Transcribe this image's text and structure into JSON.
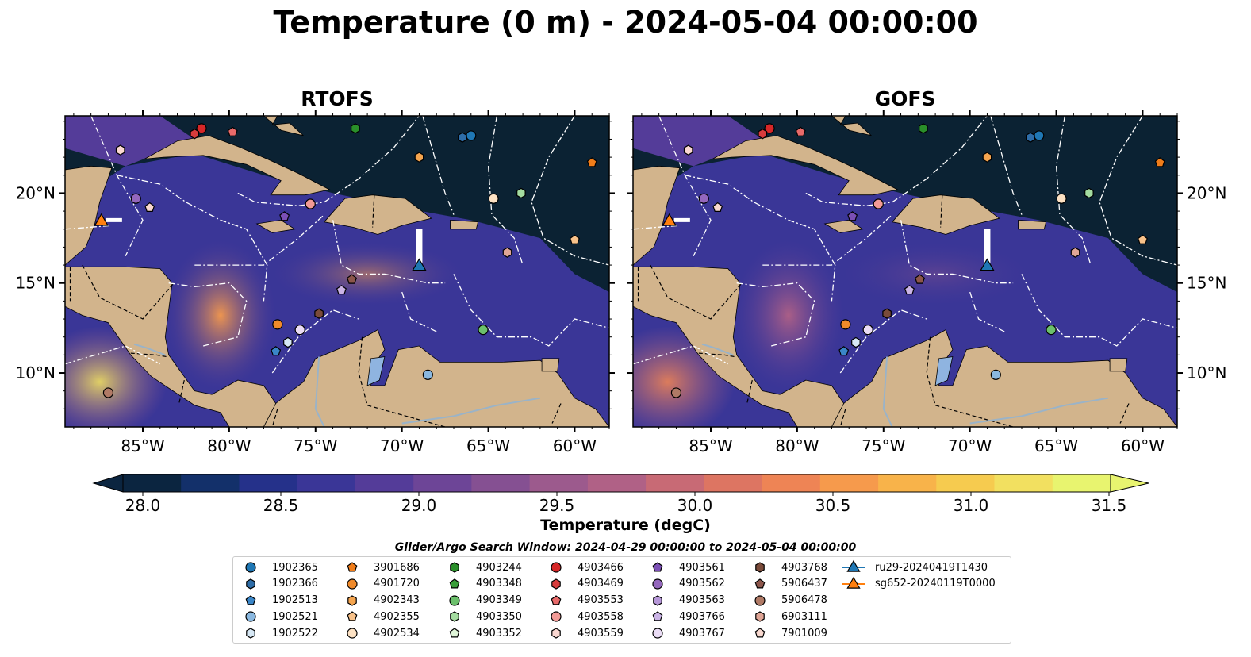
{
  "title": "Temperature (0 m) - 2024-05-04 00:00:00",
  "panels": [
    {
      "title": "RTOFS",
      "tint": "warm"
    },
    {
      "title": "GOFS",
      "tint": "cool"
    }
  ],
  "axes": {
    "lon_ticks": [
      "85°W",
      "80°W",
      "75°W",
      "70°W",
      "65°W",
      "60°W"
    ],
    "lat_ticks": [
      "20°N",
      "15°N",
      "10°N"
    ]
  },
  "colorbar": {
    "label": "Temperature (degC)",
    "ticks": [
      "28.0",
      "28.5",
      "29.0",
      "29.5",
      "30.0",
      "30.5",
      "31.0",
      "31.5"
    ],
    "colors": [
      "#0b2540",
      "#13306a",
      "#25318a",
      "#3a3697",
      "#543c99",
      "#6d4597",
      "#855092",
      "#9c5a8d",
      "#b06186",
      "#c86a75",
      "#dd7562",
      "#ee8455",
      "#f69a4c",
      "#f8b34a",
      "#f6cb4f",
      "#f2e060",
      "#e8f46f"
    ]
  },
  "land_color": "#d2b48c",
  "ocean_dark": "#0b2233",
  "legend": {
    "title": "Glider/Argo Search Window: 2024-04-29 00:00:00 to 2024-05-04 00:00:00",
    "items": [
      {
        "label": "1902365",
        "marker": "circle",
        "color": "#1f77b4"
      },
      {
        "label": "1902366",
        "marker": "hexagon",
        "color": "#2e6da8"
      },
      {
        "label": "1902513",
        "marker": "pentagon",
        "color": "#3a86c8"
      },
      {
        "label": "1902521",
        "marker": "circle",
        "color": "#8ab8e0"
      },
      {
        "label": "1902522",
        "marker": "hexagon",
        "color": "#d7e8f5"
      },
      {
        "label": "3901686",
        "marker": "pentagon",
        "color": "#f07d1a"
      },
      {
        "label": "4901720",
        "marker": "circle",
        "color": "#f08a2a"
      },
      {
        "label": "4902343",
        "marker": "hexagon",
        "color": "#f5a54f"
      },
      {
        "label": "4902355",
        "marker": "pentagon",
        "color": "#f8c28a"
      },
      {
        "label": "4902534",
        "marker": "circle",
        "color": "#fde2c4"
      },
      {
        "label": "4903244",
        "marker": "hexagon",
        "color": "#2a8f2a"
      },
      {
        "label": "4903348",
        "marker": "pentagon",
        "color": "#3a9e3a"
      },
      {
        "label": "4903349",
        "marker": "circle",
        "color": "#6cc06c"
      },
      {
        "label": "4903350",
        "marker": "hexagon",
        "color": "#a4dca0"
      },
      {
        "label": "4903352",
        "marker": "pentagon",
        "color": "#dff5d8"
      },
      {
        "label": "4903466",
        "marker": "circle",
        "color": "#d62728"
      },
      {
        "label": "4903469",
        "marker": "hexagon",
        "color": "#d83c3c"
      },
      {
        "label": "4903553",
        "marker": "pentagon",
        "color": "#e86a6a"
      },
      {
        "label": "4903558",
        "marker": "circle",
        "color": "#f29a96"
      },
      {
        "label": "4903559",
        "marker": "hexagon",
        "color": "#fbd8d2"
      },
      {
        "label": "4903561",
        "marker": "pentagon",
        "color": "#7b4fb5"
      },
      {
        "label": "4903562",
        "marker": "circle",
        "color": "#9467bd"
      },
      {
        "label": "4903563",
        "marker": "hexagon",
        "color": "#b697d8"
      },
      {
        "label": "4903766",
        "marker": "pentagon",
        "color": "#cbb4e6"
      },
      {
        "label": "4903767",
        "marker": "circle",
        "color": "#eadcf5"
      },
      {
        "label": "4903768",
        "marker": "hexagon",
        "color": "#7a4b3a"
      },
      {
        "label": "5906437",
        "marker": "pentagon",
        "color": "#8c564b"
      },
      {
        "label": "5906478",
        "marker": "circle",
        "color": "#b07a66"
      },
      {
        "label": "6903111",
        "marker": "hexagon",
        "color": "#dfa596"
      },
      {
        "label": "7901009",
        "marker": "pentagon",
        "color": "#f8d8cf"
      },
      {
        "label": "ru29-20240419T1430",
        "marker": "triangle-line",
        "color": "#1f77b4"
      },
      {
        "label": "sg652-20240119T0000",
        "marker": "triangle-line",
        "color": "#ff7f0e"
      }
    ]
  },
  "floats": [
    {
      "label": "1902365",
      "lon": -66.0,
      "lat": 23.2
    },
    {
      "label": "1902366",
      "lon": -66.5,
      "lat": 23.1
    },
    {
      "label": "1902513",
      "lon": -77.3,
      "lat": 11.2
    },
    {
      "label": "1902521",
      "lon": -68.5,
      "lat": 9.9
    },
    {
      "label": "1902522",
      "lon": -76.6,
      "lat": 11.7
    },
    {
      "label": "3901686",
      "lon": -59.0,
      "lat": 21.7
    },
    {
      "label": "4901720",
      "lon": -77.2,
      "lat": 12.7
    },
    {
      "label": "4902343",
      "lon": -69.0,
      "lat": 22.0
    },
    {
      "label": "4902355",
      "lon": -60.0,
      "lat": 17.4
    },
    {
      "label": "4902534",
      "lon": -64.7,
      "lat": 19.7
    },
    {
      "label": "4903244",
      "lon": -72.7,
      "lat": 23.6
    },
    {
      "label": "4903349",
      "lon": -65.3,
      "lat": 12.4
    },
    {
      "label": "4903350",
      "lon": -63.1,
      "lat": 20.0
    },
    {
      "label": "4903466",
      "lon": -81.6,
      "lat": 23.6
    },
    {
      "label": "4903469",
      "lon": -82.0,
      "lat": 23.3
    },
    {
      "label": "4903553",
      "lon": -79.8,
      "lat": 23.4
    },
    {
      "label": "4903558",
      "lon": -75.3,
      "lat": 19.4
    },
    {
      "label": "4903559",
      "lon": -86.3,
      "lat": 22.4
    },
    {
      "label": "4903561",
      "lon": -76.8,
      "lat": 18.7
    },
    {
      "label": "4903562",
      "lon": -85.4,
      "lat": 19.7
    },
    {
      "label": "4903766",
      "lon": -73.5,
      "lat": 14.6
    },
    {
      "label": "4903767",
      "lon": -75.9,
      "lat": 12.4
    },
    {
      "label": "4903768",
      "lon": -74.8,
      "lat": 13.3
    },
    {
      "label": "5906437",
      "lon": -72.9,
      "lat": 15.2
    },
    {
      "label": "5906478",
      "lon": -87.0,
      "lat": 8.9
    },
    {
      "label": "6903111",
      "lon": -63.9,
      "lat": 16.7
    },
    {
      "label": "7901009",
      "lon": -84.6,
      "lat": 19.2
    }
  ],
  "gliders": [
    {
      "label": "ru29-20240419T1430",
      "lon": -69.0,
      "lat": 16.0,
      "track_to_lat": 18.0
    },
    {
      "label": "sg652-20240119T0000",
      "lon": -87.4,
      "lat": 18.5,
      "track_to_lat": 18.5
    }
  ]
}
